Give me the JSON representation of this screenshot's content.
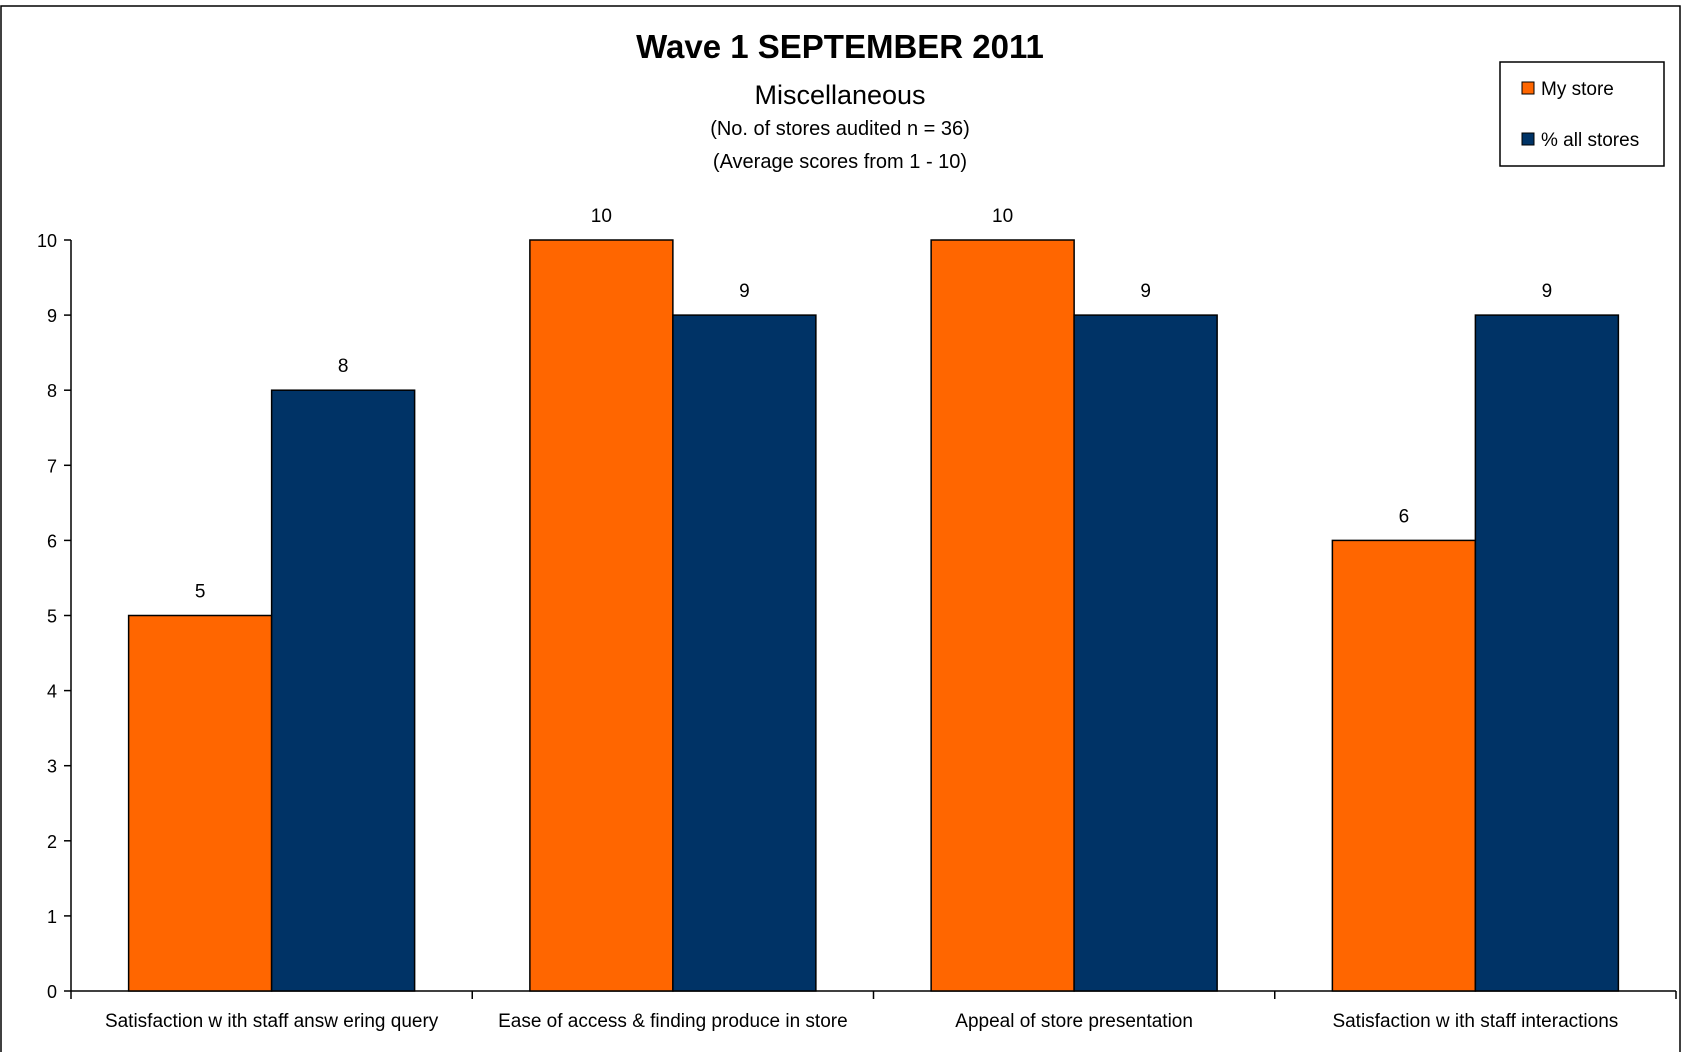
{
  "chart_data": {
    "type": "bar",
    "title": "Wave 1 SEPTEMBER 2011",
    "subtitles": [
      "Miscellaneous",
      "(No. of stores audited n = 36)",
      "(Average scores from 1 - 10)"
    ],
    "xlabel": "",
    "ylabel": "",
    "ylim": [
      0,
      10
    ],
    "yticks": [
      "0",
      "1",
      "2",
      "3",
      "4",
      "5",
      "6",
      "7",
      "8",
      "9",
      "10"
    ],
    "categories": [
      "Satisfaction w ith staff answ ering query",
      "Ease of access & finding produce in store",
      "Appeal of store presentation",
      "Satisfaction w ith staff interactions"
    ],
    "series": [
      {
        "name": "My store",
        "color": "#FF6600",
        "values": [
          5,
          10,
          10,
          6
        ],
        "labels": [
          "5",
          "10",
          "10",
          "6"
        ]
      },
      {
        "name": "% all stores",
        "color": "#003366",
        "values": [
          8,
          9,
          9,
          9
        ],
        "labels": [
          "8",
          "9",
          "9",
          "9"
        ]
      }
    ],
    "legend_position": "top-right",
    "grid": false
  }
}
